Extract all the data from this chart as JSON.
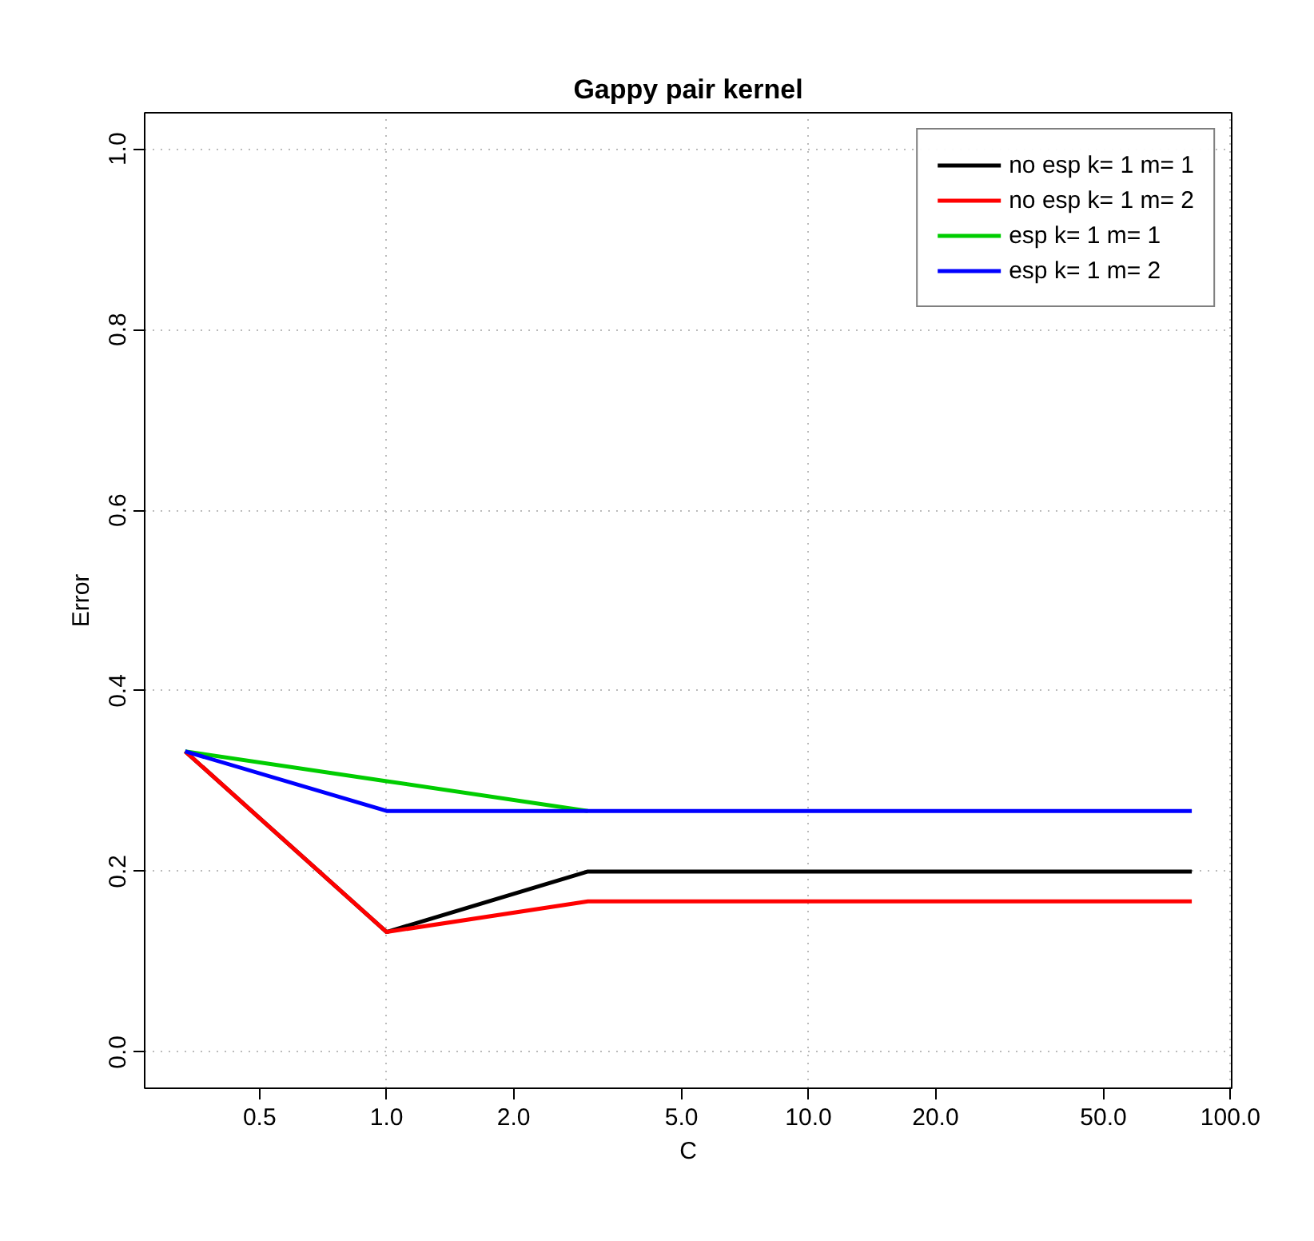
{
  "chart_data": {
    "type": "line",
    "title": "Gappy pair kernel",
    "xlabel": "C",
    "ylabel": "Error",
    "log": "x",
    "x": [
      0.333,
      1,
      3,
      9,
      27,
      81
    ],
    "xlim": [
      0.267,
      100.7
    ],
    "ylim": [
      -0.04,
      1.04
    ],
    "xticks": [
      {
        "value": 0.5,
        "label": "0.5"
      },
      {
        "value": 1,
        "label": "1.0"
      },
      {
        "value": 2,
        "label": "2.0"
      },
      {
        "value": 5,
        "label": "5.0"
      },
      {
        "value": 10,
        "label": "10.0"
      },
      {
        "value": 20,
        "label": "20.0"
      },
      {
        "value": 50,
        "label": "50.0"
      },
      {
        "value": 100,
        "label": "100.0"
      }
    ],
    "yticks": [
      {
        "value": 0,
        "label": "0.0"
      },
      {
        "value": 0.2,
        "label": "0.2"
      },
      {
        "value": 0.4,
        "label": "0.4"
      },
      {
        "value": 0.6,
        "label": "0.6"
      },
      {
        "value": 0.8,
        "label": "0.8"
      },
      {
        "value": 1,
        "label": "1.0"
      }
    ],
    "series": [
      {
        "name": "no esp k= 1 m= 1",
        "color": "#000000",
        "values": [
          0.333,
          0.133,
          0.2,
          0.2,
          0.2,
          0.2
        ]
      },
      {
        "name": "no esp k= 1 m= 2",
        "color": "#ff0000",
        "values": [
          0.333,
          0.133,
          0.167,
          0.167,
          0.167,
          0.167
        ]
      },
      {
        "name": "esp k= 1 m= 1",
        "color": "#00cd00",
        "values": [
          0.333,
          0.3,
          0.267,
          null,
          null,
          null
        ]
      },
      {
        "name": "esp k= 1 m= 2",
        "color": "#0000ff",
        "values": [
          0.333,
          0.267,
          0.267,
          0.267,
          0.267,
          0.267
        ]
      }
    ],
    "grid": true,
    "legend": "top right",
    "marker": "none",
    "line_style": "solid"
  }
}
